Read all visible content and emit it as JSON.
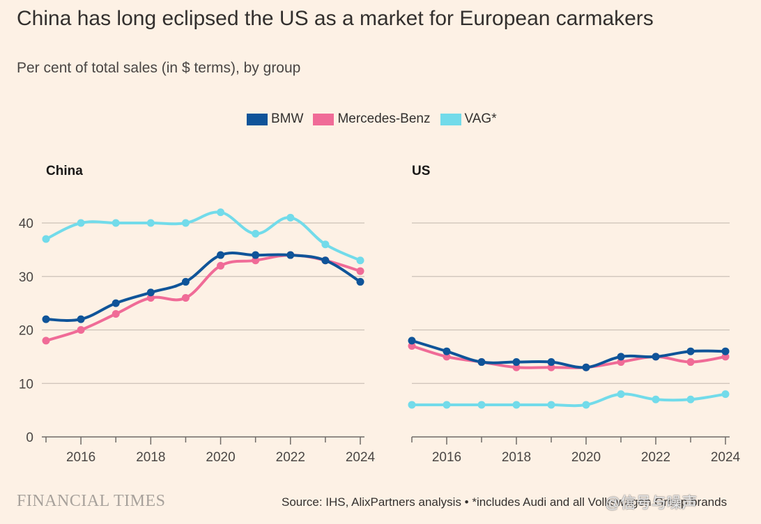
{
  "header": {
    "title": "China has long eclipsed the US as a market for European carmakers",
    "subtitle": "Per cent of total sales (in $ terms), by group"
  },
  "legend": [
    {
      "label": "BMW",
      "color": "#0f5499"
    },
    {
      "label": "Mercedes-Benz",
      "color": "#f06b97"
    },
    {
      "label": "VAG*",
      "color": "#72dbea"
    }
  ],
  "footer": {
    "logo": "FINANCIAL TIMES",
    "source": "Source: IHS, AlixPartners analysis • *includes Audi and all Volkswagen Group brands",
    "watermark": "@信号与噪声"
  },
  "chart_data": [
    {
      "type": "line",
      "title": "China",
      "x": [
        2015,
        2016,
        2017,
        2018,
        2019,
        2020,
        2021,
        2022,
        2023,
        2024
      ],
      "x_tick_labels": [
        "2016",
        "2018",
        "2020",
        "2022",
        "2024"
      ],
      "y_tick_labels": [
        "0",
        "10",
        "20",
        "30",
        "40"
      ],
      "ylim": [
        0,
        45
      ],
      "series": [
        {
          "name": "BMW",
          "color": "#0f5499",
          "values": [
            22,
            22,
            25,
            27,
            29,
            34,
            34,
            34,
            33,
            29
          ]
        },
        {
          "name": "Mercedes-Benz",
          "color": "#f06b97",
          "values": [
            18,
            20,
            23,
            26,
            26,
            32,
            33,
            34,
            33,
            31
          ]
        },
        {
          "name": "VAG*",
          "color": "#72dbea",
          "values": [
            37,
            40,
            40,
            40,
            40,
            42,
            38,
            41,
            36,
            33
          ]
        }
      ]
    },
    {
      "type": "line",
      "title": "US",
      "x": [
        2015,
        2016,
        2017,
        2018,
        2019,
        2020,
        2021,
        2022,
        2023,
        2024
      ],
      "x_tick_labels": [
        "2016",
        "2018",
        "2020",
        "2022",
        "2024"
      ],
      "ylim": [
        0,
        45
      ],
      "series": [
        {
          "name": "BMW",
          "color": "#0f5499",
          "values": [
            18,
            16,
            14,
            14,
            14,
            13,
            15,
            15,
            16,
            16
          ]
        },
        {
          "name": "Mercedes-Benz",
          "color": "#f06b97",
          "values": [
            17,
            15,
            14,
            13,
            13,
            13,
            14,
            15,
            14,
            15
          ]
        },
        {
          "name": "VAG*",
          "color": "#72dbea",
          "values": [
            6,
            6,
            6,
            6,
            6,
            6,
            8,
            7,
            7,
            8
          ]
        }
      ]
    }
  ]
}
